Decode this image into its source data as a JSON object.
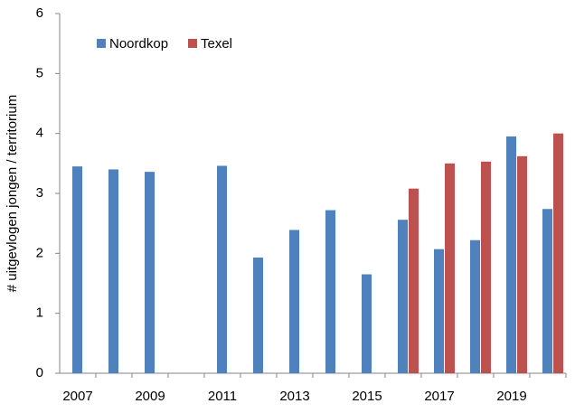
{
  "chart_data": {
    "type": "bar",
    "y_label": "# uitgevlogen jongen / territorium",
    "categories": [
      "2007",
      null,
      "2009",
      null,
      "2011",
      null,
      "2013",
      null,
      "2015",
      null,
      "2017",
      null,
      "2019",
      null
    ],
    "series": [
      {
        "name": "Noordkop",
        "color": "#4f81bd",
        "values": [
          3.45,
          3.4,
          3.36,
          null,
          3.46,
          1.93,
          2.39,
          2.72,
          1.65,
          2.56,
          2.07,
          2.22,
          3.95,
          2.74
        ]
      },
      {
        "name": "Texel",
        "color": "#c0504d",
        "values": [
          null,
          null,
          null,
          null,
          null,
          null,
          null,
          null,
          null,
          3.08,
          3.5,
          3.53,
          3.62,
          4.0
        ]
      }
    ],
    "ylim": [
      0,
      6
    ],
    "yticks": [
      0,
      1,
      2,
      3,
      4,
      5,
      6
    ],
    "grid": false,
    "legend": "top-left"
  }
}
